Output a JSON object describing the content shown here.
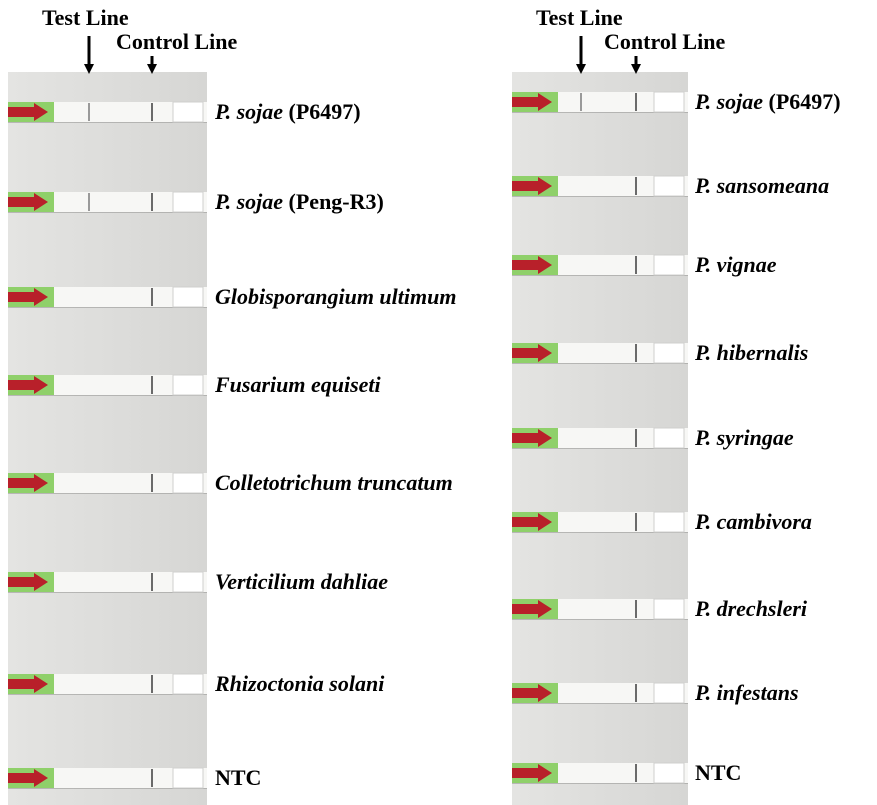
{
  "panels": [
    {
      "test_label": "Test Line",
      "control_label": "Control Line",
      "strips": [
        {
          "italic": "P. sojae",
          "plain": "(P6497)"
        },
        {
          "italic": "P. sojae",
          "plain": "(Peng-R3)"
        },
        {
          "italic": "Globisporangium ultimum"
        },
        {
          "italic": "Fusarium equiseti"
        },
        {
          "italic": "Colletotrichum truncatum"
        },
        {
          "italic": "Verticilium dahliae"
        },
        {
          "italic": "Rhizoctonia solani"
        },
        {
          "plain": "NTC"
        }
      ]
    },
    {
      "test_label": "Test Line",
      "control_label": "Control Line",
      "strips": [
        {
          "italic": "P. sojae",
          "plain": "(P6497)"
        },
        {
          "italic": "P. sansomeana"
        },
        {
          "italic": "P. vignae"
        },
        {
          "italic": "P. hibernalis"
        },
        {
          "italic": "P. syringae"
        },
        {
          "italic": "P. cambivora"
        },
        {
          "italic": "P. drechsleri"
        },
        {
          "italic": "P. infestans"
        },
        {
          "plain": "NTC"
        }
      ]
    }
  ]
}
